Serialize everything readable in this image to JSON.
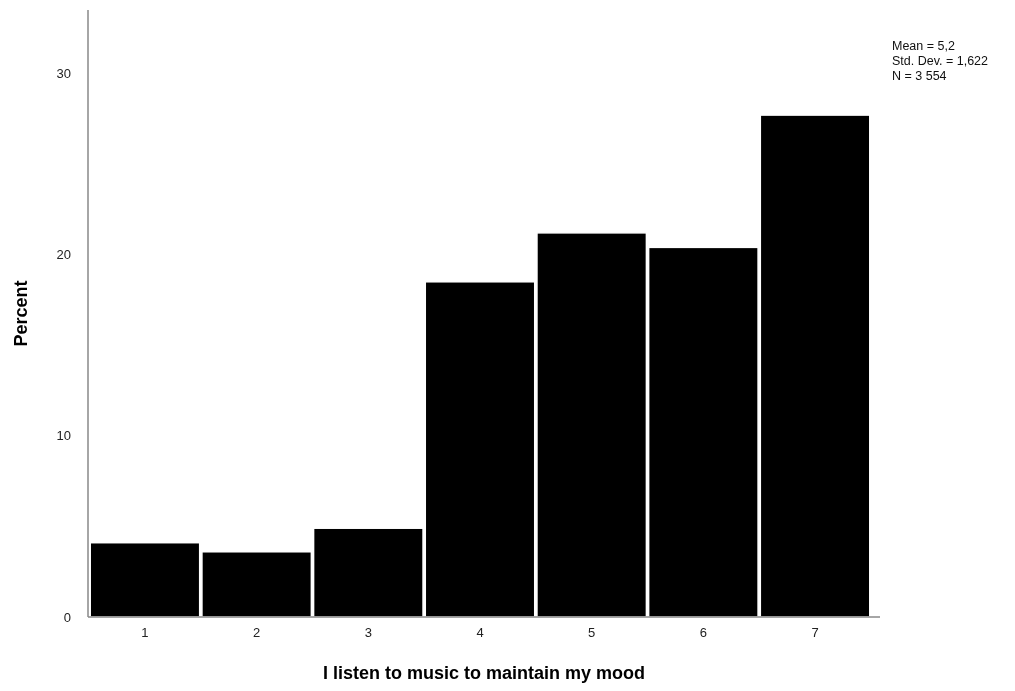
{
  "chart_data": {
    "type": "bar",
    "xlabel": "I listen to music to maintain my mood",
    "ylabel": "Percent",
    "categories": [
      "1",
      "2",
      "3",
      "4",
      "5",
      "6",
      "7"
    ],
    "values": [
      4.1,
      3.6,
      4.9,
      18.5,
      21.2,
      20.4,
      27.7
    ],
    "color": "#000000",
    "ylim": [
      0,
      33.5
    ],
    "yticks": [
      0,
      10,
      20,
      30
    ],
    "annotations": [
      "Mean = 5,2",
      "Std. Dev. = 1,622",
      "N = 3 554"
    ]
  }
}
